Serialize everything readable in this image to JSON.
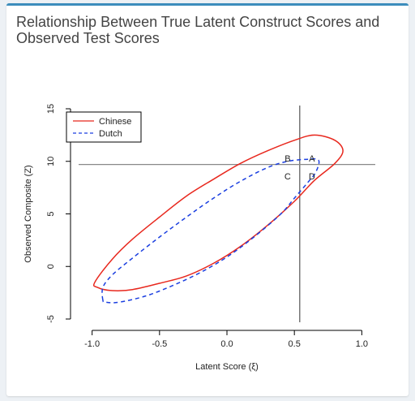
{
  "card": {
    "title": "Relationship Between True Latent Construct Scores and Observed Test Scores"
  },
  "colors": {
    "accent": "#3c8dbc",
    "chinese": "#e8281e",
    "dutch": "#1b3fe0",
    "cutoff": "#888888"
  },
  "chart_data": {
    "type": "line",
    "xlabel": "Latent Score (ξ)",
    "ylabel": "Observed Composite (Z)",
    "xlim": [
      -1.1,
      1.1
    ],
    "ylim": [
      -5,
      15
    ],
    "x_ticks": [
      "-1.0",
      "-0.5",
      "0.0",
      "0.5",
      "1.0"
    ],
    "x_tick_values": [
      -1.0,
      -0.5,
      0.0,
      0.5,
      1.0
    ],
    "y_ticks": [
      "-5",
      "0",
      "5",
      "10",
      "15"
    ],
    "y_tick_values": [
      -5,
      0,
      5,
      10,
      15
    ],
    "legend": {
      "placement": "top-left",
      "entries": [
        {
          "name": "Chinese",
          "style": "solid",
          "color": "#e8281e"
        },
        {
          "name": "Dutch",
          "style": "dashed",
          "color": "#1b3fe0"
        }
      ]
    },
    "series": [
      {
        "name": "Chinese",
        "style": "solid",
        "color": "#e8281e",
        "points": [
          [
            -0.98,
            -1.5
          ],
          [
            -0.85,
            0.7
          ],
          [
            -0.7,
            2.6
          ],
          [
            -0.5,
            4.7
          ],
          [
            -0.3,
            6.7
          ],
          [
            -0.1,
            8.3
          ],
          [
            0.1,
            9.8
          ],
          [
            0.3,
            11.0
          ],
          [
            0.5,
            12.0
          ],
          [
            0.65,
            12.5
          ],
          [
            0.8,
            12.0
          ],
          [
            0.86,
            11.0
          ],
          [
            0.8,
            9.8
          ],
          [
            0.65,
            8.2
          ],
          [
            0.5,
            6.2
          ],
          [
            0.3,
            3.9
          ],
          [
            0.1,
            1.9
          ],
          [
            -0.1,
            0.3
          ],
          [
            -0.3,
            -0.9
          ],
          [
            -0.5,
            -1.6
          ],
          [
            -0.7,
            -2.2
          ],
          [
            -0.85,
            -2.3
          ],
          [
            -0.96,
            -2.0
          ],
          [
            -0.98,
            -1.5
          ]
        ]
      },
      {
        "name": "Dutch",
        "style": "dashed",
        "color": "#1b3fe0",
        "points": [
          [
            -0.92,
            -3.2
          ],
          [
            -0.92,
            -2.0
          ],
          [
            -0.85,
            -0.8
          ],
          [
            -0.7,
            0.8
          ],
          [
            -0.5,
            2.8
          ],
          [
            -0.3,
            4.7
          ],
          [
            -0.1,
            6.5
          ],
          [
            0.1,
            8.1
          ],
          [
            0.3,
            9.4
          ],
          [
            0.45,
            10.0
          ],
          [
            0.6,
            10.2
          ],
          [
            0.68,
            10.1
          ],
          [
            0.66,
            9.0
          ],
          [
            0.6,
            8.0
          ],
          [
            0.5,
            6.5
          ],
          [
            0.4,
            5.0
          ],
          [
            0.2,
            2.8
          ],
          [
            0.0,
            0.9
          ],
          [
            -0.2,
            -0.6
          ],
          [
            -0.4,
            -1.8
          ],
          [
            -0.6,
            -2.8
          ],
          [
            -0.8,
            -3.4
          ],
          [
            -0.9,
            -3.4
          ],
          [
            -0.92,
            -3.2
          ]
        ]
      }
    ],
    "reference_lines": {
      "vertical_x": 0.54,
      "horizontal_y": 9.7
    },
    "region_labels": [
      {
        "label": "B",
        "x": 0.45,
        "y": 10.3
      },
      {
        "label": "A",
        "x": 0.63,
        "y": 10.3
      },
      {
        "label": "C",
        "x": 0.45,
        "y": 8.6
      },
      {
        "label": "D",
        "x": 0.63,
        "y": 8.6
      }
    ]
  }
}
